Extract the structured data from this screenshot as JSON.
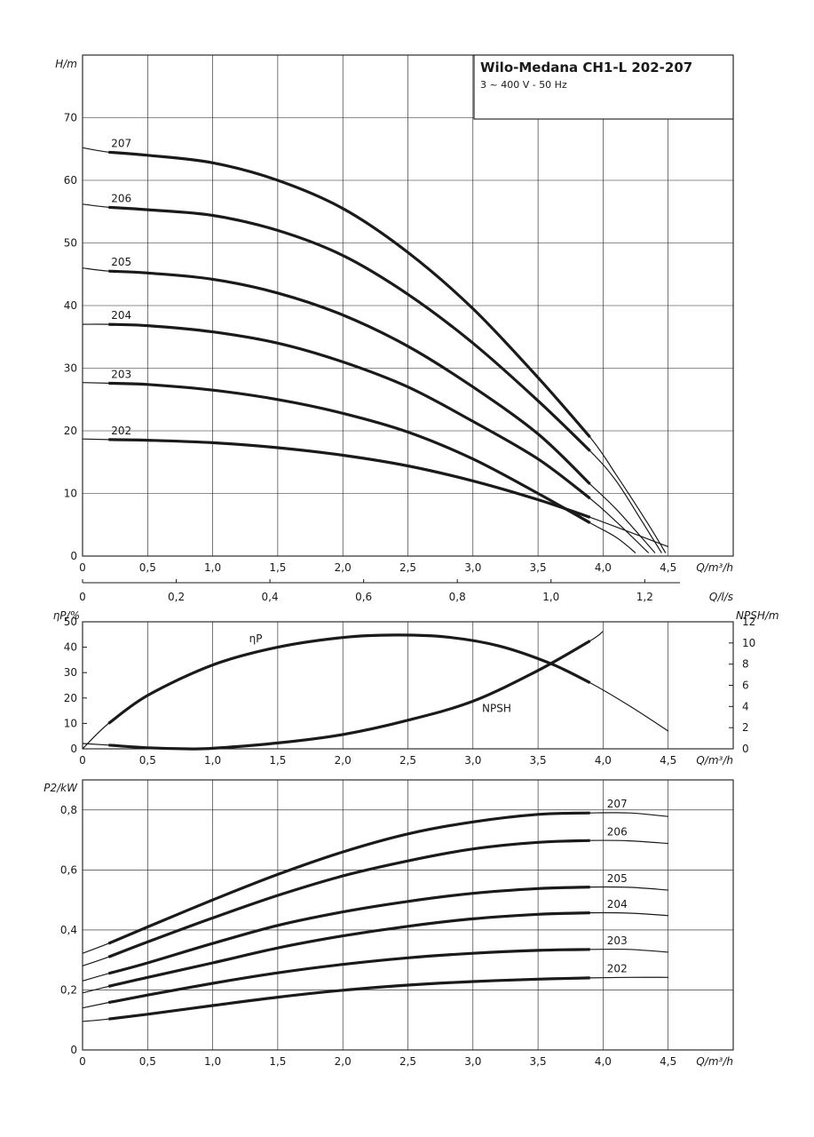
{
  "header": {
    "title": "Wilo-Medana CH1-L 202-207",
    "subtitle": "3 ~ 400 V - 50 Hz"
  },
  "chart_data": [
    {
      "type": "line",
      "title": "Wilo-Medana CH1-L 202-207",
      "subtitle": "3 ~ 400 V - 50 Hz",
      "xlabel": "Q/m³/h",
      "ylabel": "H/m",
      "xlim": [
        0,
        5
      ],
      "ylim": [
        0,
        80
      ],
      "x_ticks": [
        "0",
        "0,5",
        "1,0",
        "1,5",
        "2,0",
        "2,5",
        "3,0",
        "3,5",
        "4,0",
        "4,5"
      ],
      "y_ticks": [
        "0",
        "10",
        "20",
        "30",
        "40",
        "50",
        "60",
        "70"
      ],
      "secondary_x_axis": {
        "label": "Q/l/s",
        "range": [
          0,
          1.3889
        ],
        "ticks": [
          {
            "value": 0,
            "label": "0"
          },
          {
            "value": 0.2,
            "label": "0,2"
          },
          {
            "value": 0.4,
            "label": "0,4"
          },
          {
            "value": 0.6,
            "label": "0,6"
          },
          {
            "value": 0.8,
            "label": "0,8"
          },
          {
            "value": 1.0,
            "label": "1,0"
          },
          {
            "value": 1.2,
            "label": "1,2"
          }
        ]
      },
      "series": [
        {
          "name": "207",
          "x": [
            0,
            0.2,
            0.5,
            1.0,
            1.5,
            2.0,
            2.5,
            3.0,
            3.5,
            3.9,
            4.1,
            4.35,
            4.48
          ],
          "y": [
            65.2,
            64.5,
            64.0,
            62.8,
            60.0,
            55.5,
            48.5,
            39.5,
            28.5,
            19.0,
            13.0,
            5.0,
            0.5
          ]
        },
        {
          "name": "206",
          "x": [
            0,
            0.2,
            0.5,
            1.0,
            1.5,
            2.0,
            2.5,
            3.0,
            3.5,
            3.9,
            4.1,
            4.3,
            4.45
          ],
          "y": [
            56.2,
            55.7,
            55.3,
            54.4,
            52.0,
            48.0,
            41.8,
            34.0,
            24.8,
            16.8,
            12.0,
            5.5,
            0.5
          ]
        },
        {
          "name": "205",
          "x": [
            0,
            0.2,
            0.5,
            1.0,
            1.5,
            2.0,
            2.5,
            3.0,
            3.5,
            3.9,
            4.1,
            4.4
          ],
          "y": [
            46.0,
            45.5,
            45.2,
            44.2,
            42.0,
            38.5,
            33.5,
            27.0,
            19.5,
            11.5,
            7.5,
            0.5
          ]
        },
        {
          "name": "204",
          "x": [
            0,
            0.2,
            0.5,
            1.0,
            1.5,
            2.0,
            2.5,
            3.0,
            3.5,
            3.9,
            4.1,
            4.35
          ],
          "y": [
            37.0,
            37.0,
            36.8,
            35.8,
            34.0,
            31.0,
            27.0,
            21.5,
            15.5,
            9.2,
            5.5,
            0.5
          ]
        },
        {
          "name": "203",
          "x": [
            0,
            0.2,
            0.5,
            1.0,
            1.5,
            2.0,
            2.5,
            3.0,
            3.5,
            3.9,
            4.1,
            4.25
          ],
          "y": [
            27.7,
            27.6,
            27.4,
            26.5,
            25.0,
            22.8,
            19.8,
            15.5,
            10.0,
            5.3,
            3.0,
            0.5
          ]
        },
        {
          "name": "202",
          "x": [
            0,
            0.2,
            0.5,
            1.0,
            1.5,
            2.0,
            2.5,
            3.0,
            3.5,
            3.9,
            4.5
          ],
          "y": [
            18.7,
            18.6,
            18.5,
            18.1,
            17.3,
            16.1,
            14.4,
            12.0,
            9.0,
            6.2,
            1.5
          ]
        }
      ]
    },
    {
      "type": "line",
      "xlabel": "Q/m³/h",
      "ylabel": "ηP/%",
      "y2label": "NPSH/m",
      "xlim": [
        0,
        5
      ],
      "ylim": [
        0,
        50
      ],
      "y2lim": [
        0,
        12
      ],
      "x_ticks": [
        "0",
        "0,5",
        "1,0",
        "1,5",
        "2,0",
        "2,5",
        "3,0",
        "3,5",
        "4,0",
        "4,5"
      ],
      "y_ticks": [
        "0",
        "10",
        "20",
        "30",
        "40",
        "50"
      ],
      "y2_ticks": [
        "0",
        "2",
        "4",
        "6",
        "8",
        "10",
        "12"
      ],
      "annotations": [
        "ηP",
        "NPSH"
      ],
      "series": [
        {
          "name": "ηP",
          "axis": "left",
          "x": [
            0,
            0.2,
            0.5,
            1.0,
            1.5,
            2.0,
            2.4,
            2.8,
            3.2,
            3.6,
            3.9,
            4.2,
            4.5
          ],
          "y": [
            0,
            10.0,
            21.0,
            33.0,
            40.0,
            43.8,
            44.8,
            44.0,
            40.5,
            33.5,
            26.0,
            17.0,
            7.0
          ]
        },
        {
          "name": "NPSH",
          "axis": "right",
          "x": [
            0,
            0.2,
            0.5,
            0.8,
            1.0,
            1.5,
            2.0,
            2.5,
            3.0,
            3.5,
            3.9,
            4.0
          ],
          "y": [
            0.5,
            0.35,
            0.1,
            0.0,
            0.05,
            0.55,
            1.35,
            2.7,
            4.5,
            7.4,
            10.2,
            11.1
          ]
        }
      ]
    },
    {
      "type": "line",
      "xlabel": "Q/m³/h",
      "ylabel": "P2/kW",
      "xlim": [
        0,
        5
      ],
      "ylim": [
        0,
        0.9
      ],
      "x_ticks": [
        "0",
        "0,5",
        "1,0",
        "1,5",
        "2,0",
        "2,5",
        "3,0",
        "3,5",
        "4,0",
        "4,5"
      ],
      "y_ticks": [
        "0",
        "0,2",
        "0,4",
        "0,6",
        "0,8"
      ],
      "series": [
        {
          "name": "207",
          "x": [
            0,
            0.2,
            0.5,
            1.0,
            1.5,
            2.0,
            2.5,
            3.0,
            3.5,
            3.9,
            4.2,
            4.5
          ],
          "y": [
            0.322,
            0.355,
            0.41,
            0.5,
            0.585,
            0.66,
            0.72,
            0.76,
            0.785,
            0.79,
            0.79,
            0.778
          ]
        },
        {
          "name": "206",
          "x": [
            0,
            0.2,
            0.5,
            1.0,
            1.5,
            2.0,
            2.5,
            3.0,
            3.5,
            3.9,
            4.2,
            4.5
          ],
          "y": [
            0.28,
            0.31,
            0.36,
            0.44,
            0.515,
            0.58,
            0.63,
            0.67,
            0.692,
            0.698,
            0.697,
            0.688
          ]
        },
        {
          "name": "205",
          "x": [
            0,
            0.2,
            0.5,
            1.0,
            1.5,
            2.0,
            2.5,
            3.0,
            3.5,
            3.9,
            4.2,
            4.5
          ],
          "y": [
            0.23,
            0.255,
            0.29,
            0.355,
            0.415,
            0.46,
            0.495,
            0.522,
            0.538,
            0.543,
            0.542,
            0.533
          ]
        },
        {
          "name": "204",
          "x": [
            0,
            0.2,
            0.5,
            1.0,
            1.5,
            2.0,
            2.5,
            3.0,
            3.5,
            3.9,
            4.2,
            4.5
          ],
          "y": [
            0.19,
            0.212,
            0.242,
            0.29,
            0.34,
            0.38,
            0.412,
            0.437,
            0.452,
            0.457,
            0.456,
            0.448
          ]
        },
        {
          "name": "203",
          "x": [
            0,
            0.2,
            0.5,
            1.0,
            1.5,
            2.0,
            2.5,
            3.0,
            3.5,
            3.9,
            4.2,
            4.5
          ],
          "y": [
            0.14,
            0.158,
            0.183,
            0.222,
            0.257,
            0.285,
            0.307,
            0.322,
            0.332,
            0.335,
            0.335,
            0.326
          ]
        },
        {
          "name": "202",
          "x": [
            0,
            0.2,
            0.5,
            1.0,
            1.5,
            2.0,
            2.5,
            3.0,
            3.5,
            3.9,
            4.2,
            4.5
          ],
          "y": [
            0.095,
            0.103,
            0.119,
            0.148,
            0.176,
            0.199,
            0.216,
            0.228,
            0.236,
            0.24,
            0.242,
            0.242
          ]
        }
      ]
    }
  ]
}
